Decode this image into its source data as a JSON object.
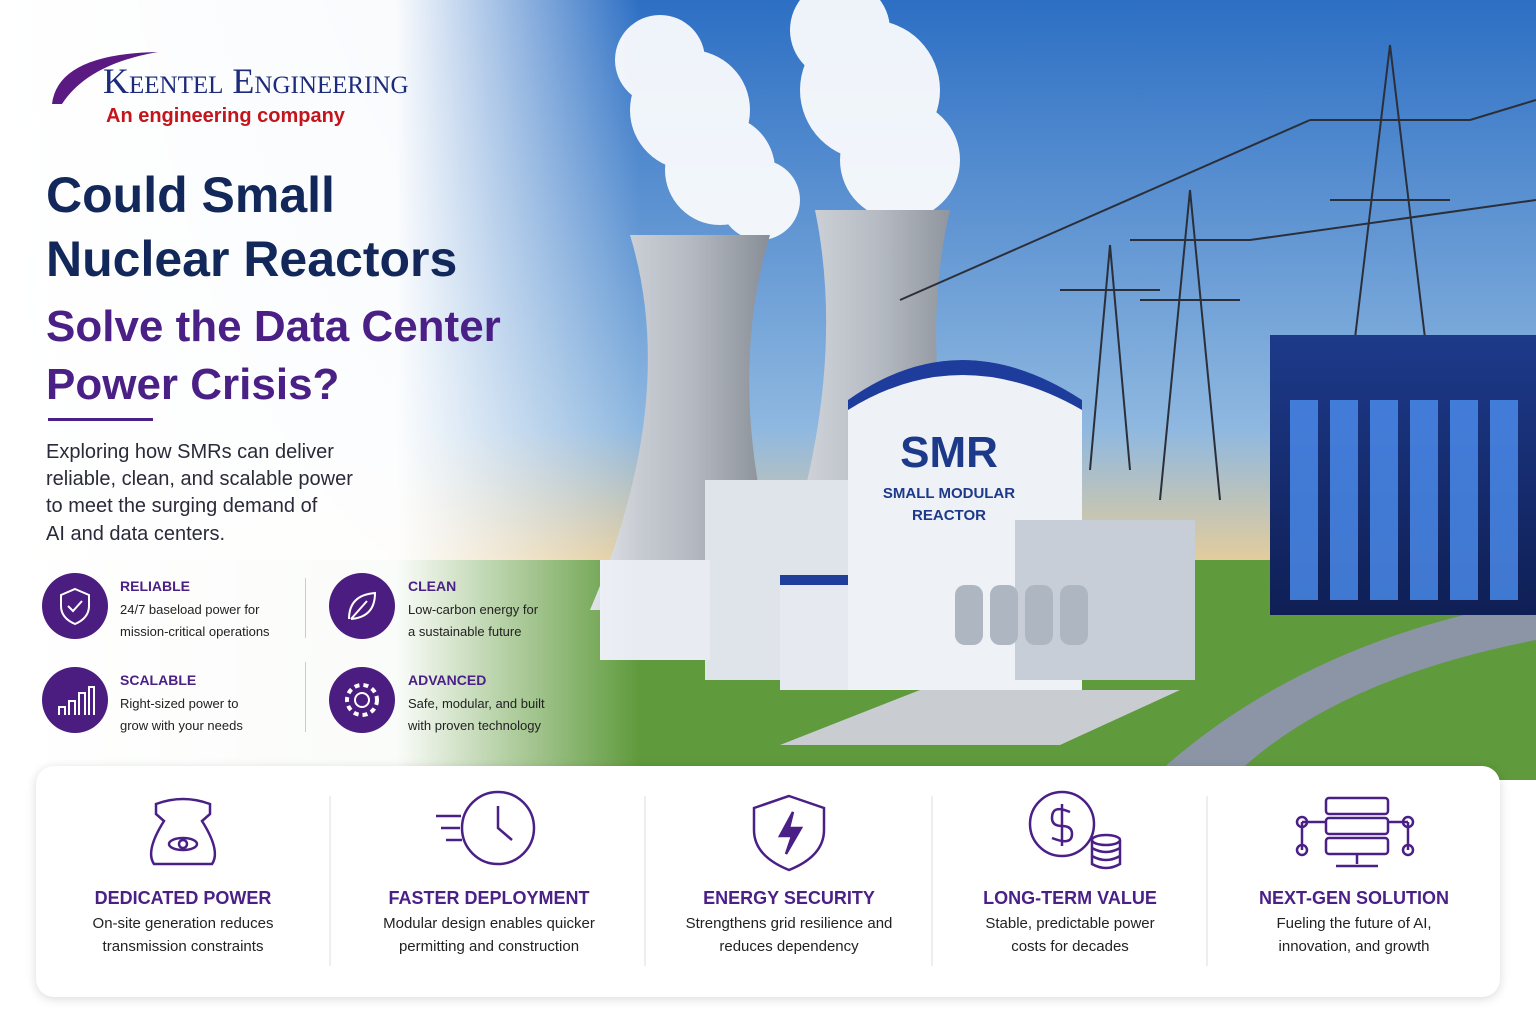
{
  "logo": {
    "company": "Keentel Engineering",
    "tagline": "An engineering company"
  },
  "headline": {
    "lines": [
      "Could Small",
      "Nuclear Reactors"
    ],
    "accent_lines": [
      "Solve the Data Center",
      "Power Crisis?"
    ]
  },
  "intro": {
    "lines": [
      "Exploring how SMRs can deliver",
      "reliable, clean, and scalable power",
      "to meet the surging demand of",
      "AI and data centers."
    ]
  },
  "features": [
    {
      "title": "RELIABLE",
      "lines": [
        "24/7 baseload power for",
        "mission-critical operations"
      ]
    },
    {
      "title": "CLEAN",
      "lines": [
        "Low-carbon energy for",
        "a sustainable future"
      ]
    },
    {
      "title": "SCALABLE",
      "lines": [
        "Right-sized power to",
        "grow with your needs"
      ]
    },
    {
      "title": "ADVANCED",
      "lines": [
        "Safe, modular, and built",
        "with proven technology"
      ]
    }
  ],
  "reactor_label": {
    "name": "SMR",
    "lines": [
      "SMALL MODULAR",
      "REACTOR"
    ]
  },
  "benefits": [
    {
      "title": "DEDICATED POWER",
      "lines": [
        "On-site generation reduces",
        "transmission constraints"
      ]
    },
    {
      "title": "FASTER DEPLOYMENT",
      "lines": [
        "Modular design enables quicker",
        "permitting and construction"
      ]
    },
    {
      "title": "ENERGY SECURITY",
      "lines": [
        "Strengthens grid resilience and",
        "reduces dependency"
      ]
    },
    {
      "title": "LONG-TERM VALUE",
      "lines": [
        "Stable, predictable power",
        "costs for decades"
      ]
    },
    {
      "title": "NEXT-GEN SOLUTION",
      "lines": [
        "Fueling the future of AI,",
        "innovation, and growth"
      ]
    }
  ]
}
